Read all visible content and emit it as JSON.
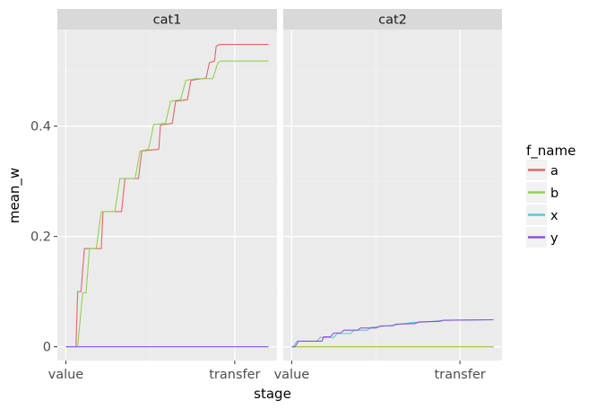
{
  "chart_data": {
    "type": "line",
    "xlabel": "stage",
    "ylabel": "mean_w",
    "x_categories": [
      "value",
      "transfer"
    ],
    "xlim": [
      -0.05,
      1.25
    ],
    "ylim": [
      -0.025,
      0.575
    ],
    "yticks": [
      0,
      0.2,
      0.4
    ],
    "ytick_labels": [
      "0",
      "0.2",
      "0.4"
    ],
    "grid": true,
    "legend": {
      "title": "f_name",
      "position": "right",
      "entries": [
        {
          "name": "a",
          "color": "#e06666"
        },
        {
          "name": "b",
          "color": "#93d150"
        },
        {
          "name": "x",
          "color": "#5cc8d2"
        },
        {
          "name": "y",
          "color": "#8e4fe0"
        }
      ]
    },
    "panels": [
      {
        "title": "cat1",
        "series": [
          {
            "name": "a",
            "color": "#e06666",
            "points": [
              [
                0,
                0
              ],
              [
                0.06,
                0
              ],
              [
                0.07,
                0.1
              ],
              [
                0.09,
                0.1
              ],
              [
                0.11,
                0.178
              ],
              [
                0.21,
                0.178
              ],
              [
                0.22,
                0.245
              ],
              [
                0.33,
                0.245
              ],
              [
                0.35,
                0.305
              ],
              [
                0.43,
                0.305
              ],
              [
                0.45,
                0.355
              ],
              [
                0.55,
                0.358
              ],
              [
                0.56,
                0.402
              ],
              [
                0.63,
                0.405
              ],
              [
                0.65,
                0.445
              ],
              [
                0.72,
                0.448
              ],
              [
                0.74,
                0.483
              ],
              [
                0.83,
                0.487
              ],
              [
                0.85,
                0.515
              ],
              [
                0.88,
                0.518
              ],
              [
                0.89,
                0.545
              ],
              [
                0.91,
                0.548
              ],
              [
                1.2,
                0.548
              ]
            ]
          },
          {
            "name": "b",
            "color": "#93d150",
            "points": [
              [
                0.04,
                0
              ],
              [
                0.07,
                0
              ],
              [
                0.1,
                0.098
              ],
              [
                0.12,
                0.098
              ],
              [
                0.14,
                0.178
              ],
              [
                0.18,
                0.178
              ],
              [
                0.21,
                0.245
              ],
              [
                0.29,
                0.245
              ],
              [
                0.32,
                0.305
              ],
              [
                0.41,
                0.305
              ],
              [
                0.44,
                0.355
              ],
              [
                0.49,
                0.358
              ],
              [
                0.52,
                0.403
              ],
              [
                0.59,
                0.405
              ],
              [
                0.62,
                0.445
              ],
              [
                0.68,
                0.448
              ],
              [
                0.71,
                0.483
              ],
              [
                0.77,
                0.486
              ],
              [
                0.8,
                0.486
              ],
              [
                0.87,
                0.486
              ],
              [
                0.9,
                0.515
              ],
              [
                0.92,
                0.518
              ],
              [
                1.2,
                0.518
              ]
            ]
          },
          {
            "name": "x",
            "color": "#5cc8d2",
            "points": [
              [
                0,
                0
              ],
              [
                1.2,
                0
              ]
            ]
          },
          {
            "name": "y",
            "color": "#8e4fe0",
            "points": [
              [
                0,
                0
              ],
              [
                1.2,
                0
              ]
            ]
          }
        ]
      },
      {
        "title": "cat2",
        "series": [
          {
            "name": "a",
            "color": "#e06666",
            "points": [
              [
                0,
                0
              ],
              [
                1.2,
                0
              ]
            ]
          },
          {
            "name": "b",
            "color": "#93d150",
            "points": [
              [
                0,
                0
              ],
              [
                1.2,
                0
              ]
            ]
          },
          {
            "name": "x",
            "color": "#5cc8d2",
            "points": [
              [
                0,
                0
              ],
              [
                0.01,
                0
              ],
              [
                0.03,
                0.01
              ],
              [
                0.1,
                0.01
              ],
              [
                0.15,
                0.01
              ],
              [
                0.17,
                0.017
              ],
              [
                0.25,
                0.017
              ],
              [
                0.27,
                0.024
              ],
              [
                0.35,
                0.024
              ],
              [
                0.37,
                0.03
              ],
              [
                0.45,
                0.03
              ],
              [
                0.47,
                0.035
              ],
              [
                0.57,
                0.038
              ],
              [
                0.62,
                0.04
              ],
              [
                0.72,
                0.044
              ],
              [
                0.8,
                0.045
              ],
              [
                0.9,
                0.048
              ],
              [
                1.2,
                0.049
              ]
            ]
          },
          {
            "name": "y",
            "color": "#8e4fe0",
            "points": [
              [
                0,
                0
              ],
              [
                0.02,
                0
              ],
              [
                0.04,
                0.01
              ],
              [
                0.18,
                0.01
              ],
              [
                0.19,
                0.018
              ],
              [
                0.23,
                0.018
              ],
              [
                0.25,
                0.025
              ],
              [
                0.29,
                0.025
              ],
              [
                0.31,
                0.03
              ],
              [
                0.39,
                0.03
              ],
              [
                0.41,
                0.034
              ],
              [
                0.5,
                0.034
              ],
              [
                0.53,
                0.038
              ],
              [
                0.6,
                0.038
              ],
              [
                0.62,
                0.041
              ],
              [
                0.73,
                0.042
              ],
              [
                0.76,
                0.045
              ],
              [
                0.88,
                0.046
              ],
              [
                0.9,
                0.048
              ],
              [
                1.2,
                0.049
              ]
            ]
          }
        ]
      }
    ]
  }
}
